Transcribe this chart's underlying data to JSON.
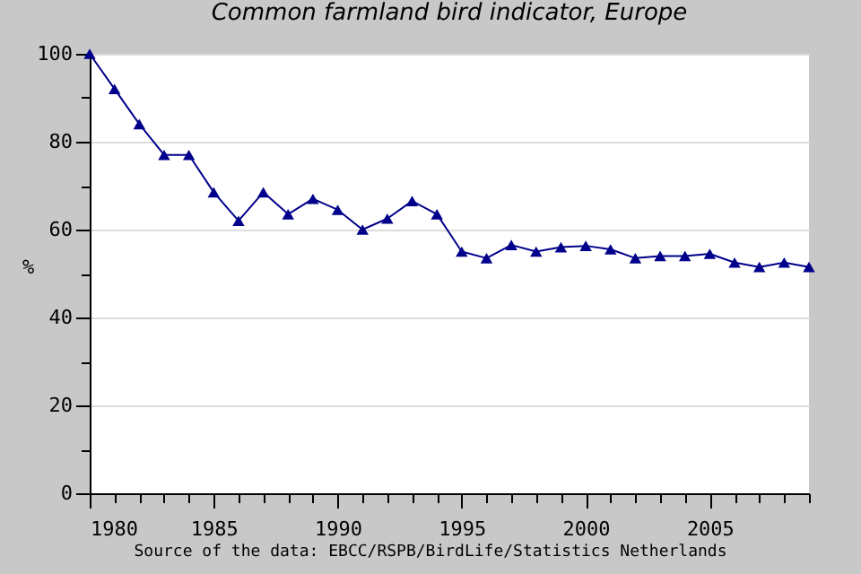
{
  "chart_data": {
    "type": "line",
    "title": "Common farmland bird indicator, Europe",
    "ylabel": "%",
    "annotations": [
      "Source of the data: EBCC/RSPB/BirdLife/Statistics Netherlands"
    ],
    "x": [
      1980,
      1981,
      1982,
      1983,
      1984,
      1985,
      1986,
      1987,
      1988,
      1989,
      1990,
      1991,
      1992,
      1993,
      1994,
      1995,
      1996,
      1997,
      1998,
      1999,
      2000,
      2001,
      2002,
      2003,
      2004,
      2005,
      2006,
      2007,
      2008,
      2009
    ],
    "series": [
      {
        "color": "#00008b",
        "values": [
          100,
          92,
          84,
          77,
          77,
          68.5,
          62,
          68.5,
          63.5,
          67,
          64.5,
          60,
          62.5,
          66.5,
          63.5,
          55,
          53.5,
          56.5,
          55,
          56,
          56.3,
          55.5,
          53.5,
          54,
          54,
          54.5,
          52.5,
          51.5,
          52.5,
          51.5
        ]
      }
    ],
    "xlim": [
      1980,
      2009
    ],
    "xticks": [
      1980,
      {
        "value": 1981,
        "label": null
      },
      {
        "value": 1982,
        "label": null
      },
      {
        "value": 1983,
        "label": null
      },
      {
        "value": 1984,
        "label": null
      },
      1985,
      {
        "value": 1986,
        "label": null
      },
      {
        "value": 1987,
        "label": null
      },
      {
        "value": 1988,
        "label": null
      },
      {
        "value": 1989,
        "label": null
      },
      1990,
      {
        "value": 1991,
        "label": null
      },
      {
        "value": 1992,
        "label": null
      },
      {
        "value": 1993,
        "label": null
      },
      {
        "value": 1994,
        "label": null
      },
      1995,
      {
        "value": 1996,
        "label": null
      },
      {
        "value": 1997,
        "label": null
      },
      {
        "value": 1998,
        "label": null
      },
      {
        "value": 1999,
        "label": null
      },
      2000,
      {
        "value": 2001,
        "label": null
      },
      {
        "value": 2002,
        "label": null
      },
      {
        "value": 2003,
        "label": null
      },
      {
        "value": 2004,
        "label": null
      },
      2005,
      {
        "value": 2006,
        "label": null
      },
      {
        "value": 2007,
        "label": null
      },
      {
        "value": 2008,
        "label": null
      },
      {
        "value": 2009,
        "label": null
      }
    ],
    "ylim": [
      0,
      100
    ],
    "yticks": [
      0,
      {
        "value": 10,
        "label": null
      },
      20,
      {
        "value": 30,
        "label": null
      },
      40,
      {
        "value": 50,
        "label": null
      },
      60,
      {
        "value": 70,
        "label": null
      },
      80,
      {
        "value": 90,
        "label": null
      },
      100
    ],
    "grid": "y",
    "marker": "triangle",
    "line_style": "solid"
  }
}
